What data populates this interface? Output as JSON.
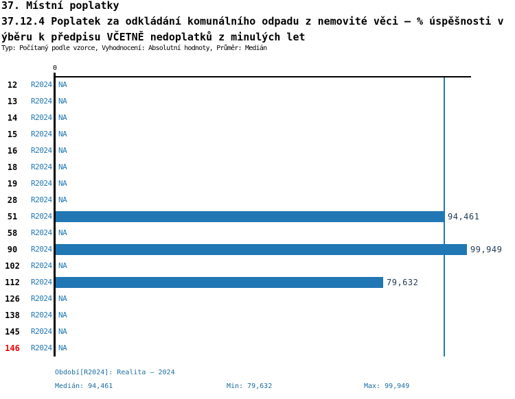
{
  "header": {
    "section_title": "37. Místní poplatky",
    "title_line1": "37.12.4 Poplatek za odkládání komunálního odpadu z nemovité věci – % úspěšnosti v",
    "title_line2": "ýběru k předpisu VČETNĚ nedoplatků z minulých let",
    "meta": "Typ: Počítaný podle vzorce, Vyhodnocení: Absolutní hodnoty, Průměr: Medián"
  },
  "chart": {
    "zero_label": "0",
    "rows": [
      {
        "id": "12",
        "period": "R2024",
        "display": "NA",
        "value": null,
        "highlight": false
      },
      {
        "id": "13",
        "period": "R2024",
        "display": "NA",
        "value": null,
        "highlight": false
      },
      {
        "id": "14",
        "period": "R2024",
        "display": "NA",
        "value": null,
        "highlight": false
      },
      {
        "id": "15",
        "period": "R2024",
        "display": "NA",
        "value": null,
        "highlight": false
      },
      {
        "id": "16",
        "period": "R2024",
        "display": "NA",
        "value": null,
        "highlight": false
      },
      {
        "id": "18",
        "period": "R2024",
        "display": "NA",
        "value": null,
        "highlight": false
      },
      {
        "id": "19",
        "period": "R2024",
        "display": "NA",
        "value": null,
        "highlight": false
      },
      {
        "id": "28",
        "period": "R2024",
        "display": "NA",
        "value": null,
        "highlight": false
      },
      {
        "id": "51",
        "period": "R2024",
        "display": "94,461",
        "value": 94.461,
        "highlight": false
      },
      {
        "id": "58",
        "period": "R2024",
        "display": "NA",
        "value": null,
        "highlight": false
      },
      {
        "id": "90",
        "period": "R2024",
        "display": "99,949",
        "value": 99.949,
        "highlight": false
      },
      {
        "id": "102",
        "period": "R2024",
        "display": "NA",
        "value": null,
        "highlight": false
      },
      {
        "id": "112",
        "period": "R2024",
        "display": "79,632",
        "value": 79.632,
        "highlight": false
      },
      {
        "id": "126",
        "period": "R2024",
        "display": "NA",
        "value": null,
        "highlight": false
      },
      {
        "id": "138",
        "period": "R2024",
        "display": "NA",
        "value": null,
        "highlight": false
      },
      {
        "id": "145",
        "period": "R2024",
        "display": "NA",
        "value": null,
        "highlight": false
      },
      {
        "id": "146",
        "period": "R2024",
        "display": "NA",
        "value": null,
        "highlight": true
      }
    ]
  },
  "footer": {
    "period": "Období[R2024]: Realita – 2024",
    "median": "Medián: 94,461",
    "min": "Min: 79,632",
    "max": "Max: 99,949"
  },
  "colors": {
    "bar_blue": "#2077b4",
    "label_blue": "#2077b4",
    "value_navy": "#1f3a56",
    "footer_teal": "#1a6d9e",
    "highlight_red": "#ee0000",
    "axis_black": "#000000"
  },
  "chart_data": {
    "type": "bar",
    "orientation": "horizontal",
    "title": "37.12.4 Poplatek za odkládání komunálního odpadu z nemovité věci – % úspěšnosti výběru k předpisu VČETNĚ nedoplatků z minulých let",
    "categories": [
      "12",
      "13",
      "14",
      "15",
      "16",
      "18",
      "19",
      "28",
      "51",
      "58",
      "90",
      "102",
      "112",
      "126",
      "138",
      "145",
      "146"
    ],
    "series": [
      {
        "name": "R2024",
        "values": [
          null,
          null,
          null,
          null,
          null,
          null,
          null,
          null,
          94.461,
          null,
          99.949,
          null,
          79.632,
          null,
          null,
          null,
          null
        ]
      }
    ],
    "value_labels": [
      "NA",
      "NA",
      "NA",
      "NA",
      "NA",
      "NA",
      "NA",
      "NA",
      "94,461",
      "NA",
      "99,949",
      "NA",
      "79,632",
      "NA",
      "NA",
      "NA",
      "NA"
    ],
    "xlim": [
      0,
      100.8
    ],
    "x_ticks": [
      0
    ],
    "median": 94.461,
    "min": 79.632,
    "max": 99.949,
    "median_line": true,
    "highlighted_category": "146",
    "grid": false,
    "legend": false
  }
}
